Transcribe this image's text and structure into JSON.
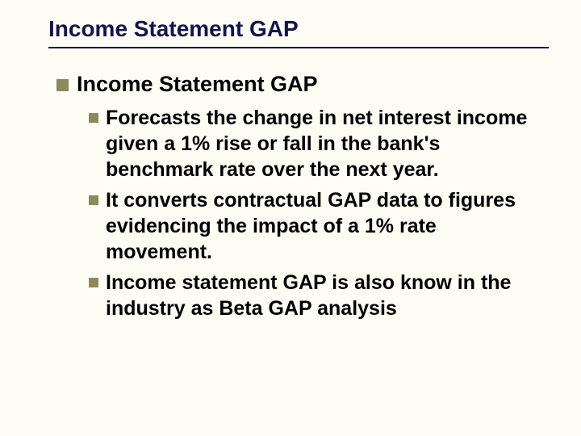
{
  "colors": {
    "background": "#fdfdf5",
    "title_color": "#15134b",
    "rule_color": "#15134b",
    "body_text_color": "#000000",
    "bullet_color": "#8a8a5c"
  },
  "typography": {
    "family": "Arial",
    "title_size_pt": 28,
    "level1_size_pt": 27,
    "level2_size_pt": 25,
    "weight": "bold"
  },
  "slide": {
    "title": "Income Statement GAP",
    "level1": {
      "text": "Income Statement GAP",
      "bullets": [
        "Forecasts the change in net interest income given a 1% rise or fall in the bank's benchmark rate over the next year.",
        "It converts contractual GAP data to figures evidencing the impact of a 1% rate movement.",
        "Income statement GAP is also know in the industry as Beta GAP analysis"
      ]
    }
  }
}
